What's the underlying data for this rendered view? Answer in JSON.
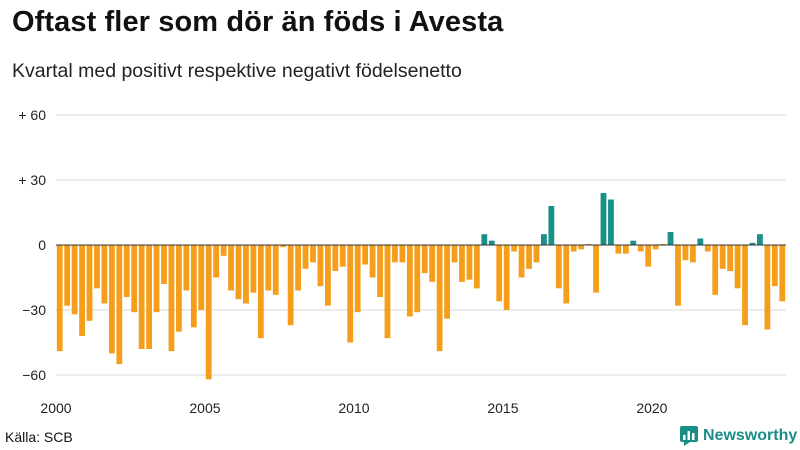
{
  "header": {
    "title": "Oftast fler som dör än föds i Avesta",
    "subtitle": "Kvartal med positivt respektive negativt födelsenetto"
  },
  "footer": {
    "source": "Källa: SCB",
    "brand": "Newsworthy"
  },
  "colors": {
    "positive": "#1a9088",
    "negative": "#f59e1b",
    "grid": "#d9d9d9",
    "zero_line": "#333333",
    "brand": "#1a8e86"
  },
  "chart_data": {
    "type": "bar",
    "title": "Oftast fler som dör än föds i Avesta",
    "subtitle": "Kvartal med positivt respektive negativt födelsenetto",
    "xlabel": "",
    "ylabel": "",
    "ylim": [
      -68,
      60
    ],
    "y_ticks": [
      {
        "value": 60,
        "label": "+ 60"
      },
      {
        "value": 30,
        "label": "+ 30"
      },
      {
        "value": 0,
        "label": "0"
      },
      {
        "value": -30,
        "label": "−30"
      },
      {
        "value": -60,
        "label": "−60"
      }
    ],
    "x_ticks": [
      {
        "value": 2000,
        "label": "2000"
      },
      {
        "value": 2005,
        "label": "2005"
      },
      {
        "value": 2010,
        "label": "2010"
      },
      {
        "value": 2015,
        "label": "2015"
      },
      {
        "value": 2020,
        "label": "2020"
      }
    ],
    "x_start": 2000,
    "bars_per_year": 4,
    "values": [
      -49,
      -28,
      -32,
      -42,
      -35,
      -20,
      -27,
      -50,
      -55,
      -24,
      -31,
      -48,
      -48,
      -31,
      -18,
      -49,
      -40,
      -21,
      -38,
      -30,
      -62,
      -15,
      -5,
      -21,
      -25,
      -27,
      -22,
      -43,
      -21,
      -23,
      -1,
      -37,
      -21,
      -11,
      -8,
      -19,
      -28,
      -12,
      -10,
      -45,
      -31,
      -9,
      -15,
      -24,
      -43,
      -8,
      -8,
      -33,
      -31,
      -13,
      -17,
      -49,
      -34,
      -8,
      -17,
      -16,
      -20,
      5,
      2,
      -26,
      -30,
      -3,
      -15,
      -11,
      -8,
      5,
      18,
      -20,
      -27,
      -3,
      -2,
      0,
      -22,
      24,
      21,
      -4,
      -4,
      2,
      -3,
      -10,
      -2,
      0,
      6,
      -28,
      -7,
      -8,
      3,
      -3,
      -23,
      -11,
      -12,
      -20,
      -37,
      1,
      5,
      -39,
      -19,
      -26
    ]
  }
}
